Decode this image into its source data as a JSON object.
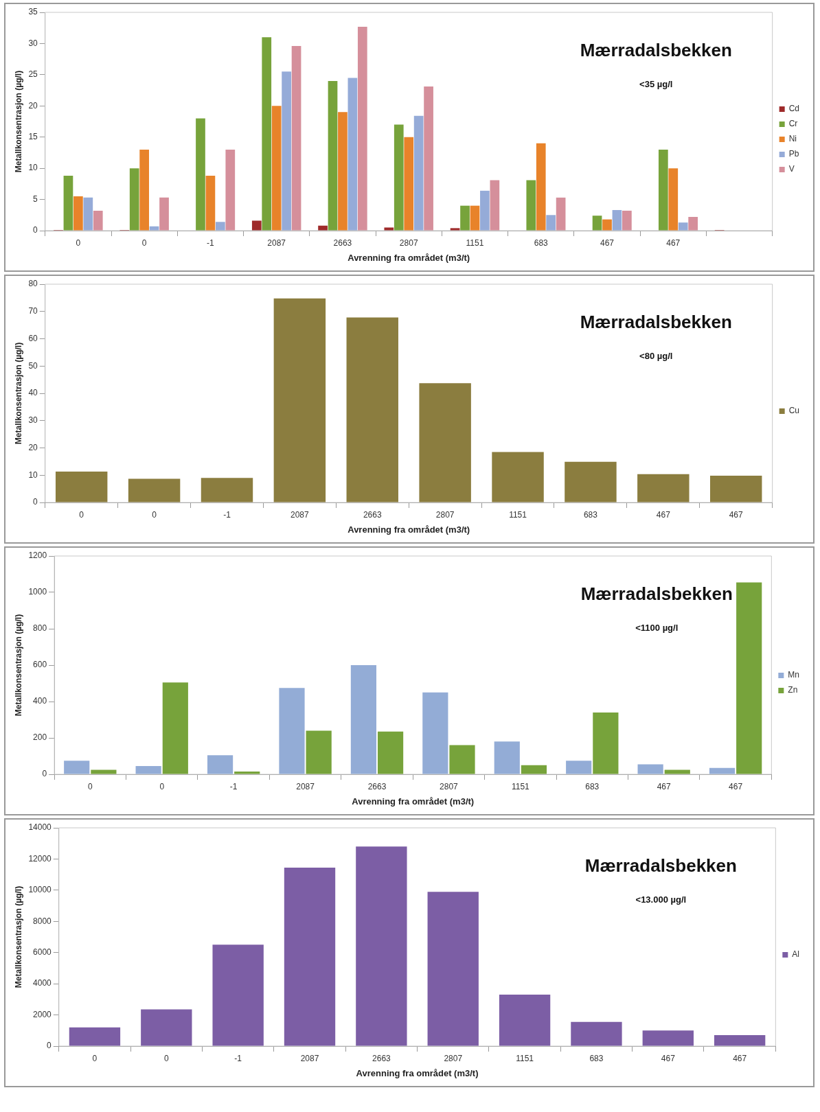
{
  "chart_data": [
    {
      "type": "bar",
      "title": "Mærradalsbekken",
      "subtitle": "<35 µg/l",
      "xlabel": "Avrenning fra området (m3/t)",
      "ylabel": "Metallkonsentrasjon (µg/l)",
      "categories": [
        "0",
        "0",
        "-1",
        "2087",
        "2663",
        "2807",
        "1151",
        "683",
        "467",
        "467",
        null
      ],
      "series": [
        {
          "name": "Cd",
          "color": "#9e2a2a",
          "values": [
            0.1,
            0.1,
            null,
            1.6,
            0.8,
            0.5,
            0.4,
            null,
            null,
            null,
            0.1
          ]
        },
        {
          "name": "Cr",
          "color": "#77a33b",
          "values": [
            8.8,
            10,
            18,
            31,
            24,
            17,
            4,
            8.1,
            2.4,
            13,
            null
          ]
        },
        {
          "name": "Ni",
          "color": "#e8832a",
          "values": [
            5.5,
            13,
            8.8,
            20,
            19,
            15,
            4,
            14,
            1.8,
            10,
            null
          ]
        },
        {
          "name": "Pb",
          "color": "#95abd8",
          "values": [
            5.3,
            0.7,
            1.4,
            25.5,
            24.5,
            18.4,
            6.4,
            2.5,
            3.3,
            1.3,
            null
          ]
        },
        {
          "name": "V",
          "color": "#d58f9b",
          "values": [
            3.2,
            5.3,
            13,
            29.6,
            32.7,
            23.1,
            8.1,
            5.3,
            3.2,
            2.2,
            null
          ]
        }
      ],
      "ylim": [
        0,
        35
      ],
      "yticks": [
        0,
        5,
        10,
        15,
        20,
        25,
        30,
        35
      ],
      "grid": false,
      "legend": "right"
    },
    {
      "type": "bar",
      "title": "Mærradalsbekken",
      "subtitle": "<80 µg/l",
      "xlabel": "Avrenning fra området (m3/t)",
      "ylabel": "Metallkonsentrasjon (µg/l)",
      "categories": [
        "0",
        "0",
        "-1",
        "2087",
        "2663",
        "2807",
        "1151",
        "683",
        "467",
        "467"
      ],
      "series": [
        {
          "name": "Cu",
          "color": "#8b7d3f",
          "values": [
            11.3,
            8.7,
            9,
            74.8,
            67.8,
            43.7,
            18.5,
            14.9,
            10.4,
            9.8
          ]
        }
      ],
      "ylim": [
        0,
        80
      ],
      "yticks": [
        0,
        10,
        20,
        30,
        40,
        50,
        60,
        70,
        80
      ],
      "grid": false,
      "legend": "right"
    },
    {
      "type": "bar",
      "title": "Mærradalsbekken",
      "subtitle": "<1100 µg/l",
      "xlabel": "Avrenning fra området (m3/t)",
      "ylabel": "Metallkonsentrasjon (µg/l)",
      "categories": [
        "0",
        "0",
        "-1",
        "2087",
        "2663",
        "2807",
        "1151",
        "683",
        "467",
        "467"
      ],
      "series": [
        {
          "name": "Mn",
          "color": "#93acd6",
          "values": [
            75,
            45,
            105,
            475,
            600,
            450,
            180,
            75,
            55,
            35
          ]
        },
        {
          "name": "Zn",
          "color": "#77a33b",
          "values": [
            25,
            505,
            15,
            240,
            235,
            160,
            50,
            340,
            25,
            1055
          ]
        }
      ],
      "ylim": [
        0,
        1200
      ],
      "yticks": [
        0,
        200,
        400,
        600,
        800,
        1000,
        1200
      ],
      "grid": false,
      "legend": "right"
    },
    {
      "type": "bar",
      "title": "Mærradalsbekken",
      "subtitle": "<13.000 µg/l",
      "xlabel": "Avrenning fra området (m3/t)",
      "ylabel": "Metallkonsentrasjon (µg/l)",
      "categories": [
        "0",
        "0",
        "-1",
        "2087",
        "2663",
        "2807",
        "1151",
        "683",
        "467",
        "467"
      ],
      "series": [
        {
          "name": "Al",
          "color": "#7c5ea5",
          "values": [
            1200,
            2350,
            6500,
            11450,
            12800,
            9900,
            3300,
            1550,
            1000,
            700
          ]
        }
      ],
      "ylim": [
        0,
        14000
      ],
      "yticks": [
        0,
        2000,
        4000,
        6000,
        8000,
        10000,
        12000,
        14000
      ],
      "grid": false,
      "legend": "right"
    }
  ]
}
